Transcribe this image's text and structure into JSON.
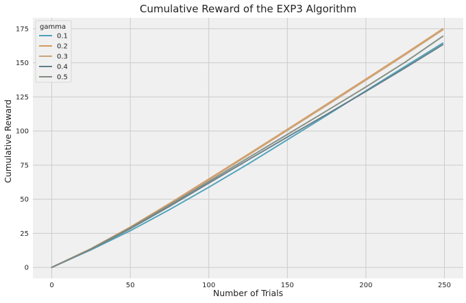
{
  "chart_data": {
    "type": "line",
    "title": "Cumulative Reward of the EXP3 Algorithm",
    "xlabel": "Number of Trials",
    "ylabel": "Cumulative Reward",
    "xlim": [
      -12,
      262
    ],
    "ylim": [
      -8,
      183
    ],
    "xticks": [
      0,
      50,
      100,
      150,
      200,
      250
    ],
    "yticks": [
      0,
      25,
      50,
      75,
      100,
      125,
      150,
      175
    ],
    "grid": true,
    "legend": {
      "title": "gamma",
      "placement": "top-left"
    },
    "series": [
      {
        "name": "0.1",
        "color": "#4b9fb7",
        "x": [
          0,
          25,
          50,
          75,
          100,
          125,
          150,
          175,
          200,
          225,
          249
        ],
        "y": [
          0,
          12.9,
          26.9,
          42.4,
          58.8,
          75.8,
          93.6,
          111.4,
          129.5,
          147.4,
          164.5
        ]
      },
      {
        "name": "0.2",
        "color": "#d6995a",
        "x": [
          0,
          25,
          50,
          75,
          100,
          125,
          150,
          175,
          200,
          225,
          249
        ],
        "y": [
          0,
          13.8,
          29.6,
          46.9,
          64.8,
          82.9,
          101.2,
          119.6,
          138.1,
          156.7,
          175.0
        ]
      },
      {
        "name": "0.3",
        "color": "#c9a27a",
        "x": [
          0,
          25,
          50,
          75,
          100,
          125,
          150,
          175,
          200,
          225,
          249
        ],
        "y": [
          0,
          13.6,
          29.2,
          46.4,
          64.2,
          82.2,
          100.5,
          118.8,
          137.3,
          155.9,
          174.2
        ]
      },
      {
        "name": "0.4",
        "color": "#607a86",
        "x": [
          0,
          25,
          50,
          75,
          100,
          125,
          150,
          175,
          200,
          225,
          249
        ],
        "y": [
          0,
          13.3,
          28.4,
          44.8,
          61.8,
          78.8,
          95.6,
          112.2,
          129.0,
          146.3,
          163.3
        ]
      },
      {
        "name": "0.5",
        "color": "#808a80",
        "x": [
          0,
          25,
          50,
          75,
          100,
          125,
          150,
          175,
          200,
          225,
          249
        ],
        "y": [
          0,
          13.5,
          29.0,
          45.8,
          63.0,
          80.3,
          97.5,
          114.8,
          132.3,
          150.5,
          169.5
        ]
      }
    ]
  }
}
